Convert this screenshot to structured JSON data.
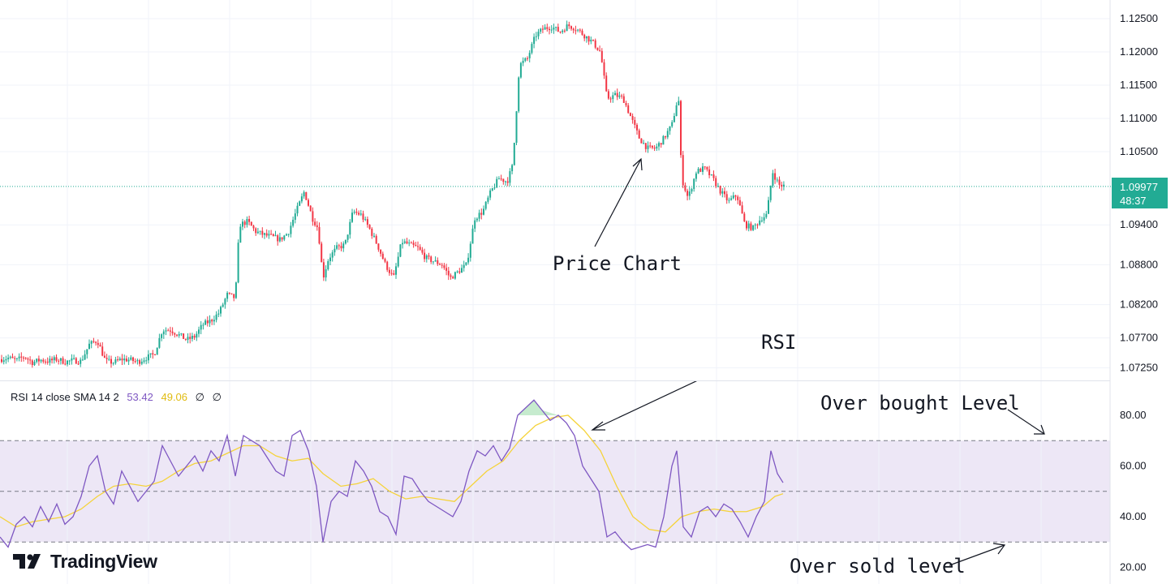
{
  "chart_data": [
    {
      "type": "candlestick",
      "title": "",
      "price_axis": {
        "ticks": [
          "1.12500",
          "1.12000",
          "1.11500",
          "1.11000",
          "1.10500",
          "1.09400",
          "1.08800",
          "1.08200",
          "1.07700",
          "1.07250"
        ],
        "current_price": "1.09977",
        "countdown": "48:37"
      },
      "path": [
        [
          0,
          1.0738
        ],
        [
          10,
          1.074
        ],
        [
          20,
          1.0736
        ],
        [
          30,
          1.0742
        ],
        [
          40,
          1.0733
        ],
        [
          50,
          1.0737
        ],
        [
          60,
          1.0735
        ],
        [
          70,
          1.0738
        ],
        [
          80,
          1.0734
        ],
        [
          90,
          1.0736
        ],
        [
          100,
          1.0735
        ],
        [
          110,
          1.076
        ],
        [
          120,
          1.0766
        ],
        [
          130,
          1.0735
        ],
        [
          140,
          1.0733
        ],
        [
          150,
          1.0738
        ],
        [
          160,
          1.0737
        ],
        [
          170,
          1.0734
        ],
        [
          180,
          1.074
        ],
        [
          190,
          1.0745
        ],
        [
          200,
          1.0782
        ],
        [
          210,
          1.0782
        ],
        [
          220,
          1.0775
        ],
        [
          230,
          1.0767
        ],
        [
          240,
          1.0772
        ],
        [
          250,
          1.079
        ],
        [
          260,
          1.0796
        ],
        [
          270,
          1.0808
        ],
        [
          280,
          1.0835
        ],
        [
          290,
          1.083
        ],
        [
          295,
          1.094
        ],
        [
          305,
          1.0945
        ],
        [
          315,
          1.093
        ],
        [
          325,
          1.0925
        ],
        [
          335,
          1.0922
        ],
        [
          345,
          1.0918
        ],
        [
          355,
          1.0928
        ],
        [
          365,
          1.096
        ],
        [
          375,
          1.099
        ],
        [
          385,
          1.095
        ],
        [
          392,
          1.0935
        ],
        [
          398,
          1.086
        ],
        [
          405,
          1.089
        ],
        [
          415,
          1.0905
        ],
        [
          425,
          1.091
        ],
        [
          435,
          1.096
        ],
        [
          445,
          1.0955
        ],
        [
          455,
          1.0935
        ],
        [
          465,
          1.091
        ],
        [
          475,
          1.088
        ],
        [
          485,
          1.086
        ],
        [
          495,
          1.0915
        ],
        [
          505,
          1.091
        ],
        [
          515,
          1.0905
        ],
        [
          525,
          1.089
        ],
        [
          535,
          1.0885
        ],
        [
          545,
          1.088
        ],
        [
          555,
          1.086
        ],
        [
          565,
          1.087
        ],
        [
          575,
          1.088
        ],
        [
          585,
          1.095
        ],
        [
          595,
          1.096
        ],
        [
          605,
          1.099
        ],
        [
          615,
          1.101
        ],
        [
          625,
          1.1005
        ],
        [
          632,
          1.103
        ],
        [
          640,
          1.118
        ],
        [
          650,
          1.119
        ],
        [
          660,
          1.1225
        ],
        [
          670,
          1.1235
        ],
        [
          680,
          1.1238
        ],
        [
          690,
          1.123
        ],
        [
          700,
          1.124
        ],
        [
          710,
          1.1235
        ],
        [
          720,
          1.1225
        ],
        [
          730,
          1.1215
        ],
        [
          740,
          1.12
        ],
        [
          748,
          1.113
        ],
        [
          758,
          1.1135
        ],
        [
          768,
          1.113
        ],
        [
          778,
          1.11
        ],
        [
          788,
          1.107
        ],
        [
          798,
          1.1055
        ],
        [
          808,
          1.1055
        ],
        [
          818,
          1.107
        ],
        [
          828,
          1.109
        ],
        [
          836,
          1.1135
        ],
        [
          840,
          1.101
        ],
        [
          848,
          1.098
        ],
        [
          858,
          1.102
        ],
        [
          868,
          1.1025
        ],
        [
          878,
          1.101
        ],
        [
          888,
          1.099
        ],
        [
          898,
          1.0975
        ],
        [
          908,
          1.0985
        ],
        [
          918,
          1.094
        ],
        [
          928,
          1.0935
        ],
        [
          938,
          1.095
        ],
        [
          945,
          1.0955
        ],
        [
          952,
          1.102
        ],
        [
          960,
          1.1
        ],
        [
          968,
          1.0998
        ]
      ],
      "visible_min": 1.0722,
      "visible_max": 1.1275
    },
    {
      "type": "line",
      "title": "RSI 14 close SMA 14 2",
      "ylim": [
        20,
        84
      ],
      "y_ticks": [
        "80.00",
        "60.00",
        "40.00",
        "20.00"
      ],
      "levels": {
        "overbought": 70,
        "middle": 50,
        "oversold": 30
      },
      "series": [
        {
          "name": "RSI",
          "value_label": "53.42",
          "color": "#7e57c2",
          "points": [
            [
              0,
              32
            ],
            [
              10,
              28
            ],
            [
              20,
              37
            ],
            [
              30,
              40
            ],
            [
              40,
              36
            ],
            [
              50,
              44
            ],
            [
              60,
              38
            ],
            [
              70,
              45
            ],
            [
              80,
              37
            ],
            [
              90,
              40
            ],
            [
              100,
              48
            ],
            [
              110,
              60
            ],
            [
              120,
              64
            ],
            [
              130,
              50
            ],
            [
              140,
              45
            ],
            [
              150,
              58
            ],
            [
              160,
              52
            ],
            [
              170,
              46
            ],
            [
              180,
              50
            ],
            [
              190,
              54
            ],
            [
              200,
              68
            ],
            [
              210,
              62
            ],
            [
              220,
              56
            ],
            [
              230,
              60
            ],
            [
              240,
              64
            ],
            [
              250,
              58
            ],
            [
              260,
              66
            ],
            [
              270,
              62
            ],
            [
              280,
              72
            ],
            [
              290,
              56
            ],
            [
              300,
              72
            ],
            [
              310,
              70
            ],
            [
              320,
              68
            ],
            [
              330,
              63
            ],
            [
              340,
              58
            ],
            [
              350,
              56
            ],
            [
              360,
              72
            ],
            [
              370,
              74
            ],
            [
              380,
              66
            ],
            [
              390,
              52
            ],
            [
              398,
              30
            ],
            [
              408,
              46
            ],
            [
              418,
              50
            ],
            [
              428,
              48
            ],
            [
              438,
              62
            ],
            [
              448,
              58
            ],
            [
              458,
              52
            ],
            [
              468,
              42
            ],
            [
              478,
              40
            ],
            [
              488,
              33
            ],
            [
              498,
              56
            ],
            [
              508,
              55
            ],
            [
              518,
              50
            ],
            [
              528,
              46
            ],
            [
              538,
              44
            ],
            [
              548,
              42
            ],
            [
              558,
              40
            ],
            [
              568,
              46
            ],
            [
              578,
              58
            ],
            [
              588,
              66
            ],
            [
              598,
              64
            ],
            [
              608,
              68
            ],
            [
              618,
              62
            ],
            [
              628,
              67
            ],
            [
              638,
              80
            ],
            [
              648,
              83
            ],
            [
              658,
              86
            ],
            [
              668,
              82
            ],
            [
              678,
              78
            ],
            [
              688,
              80
            ],
            [
              698,
              77
            ],
            [
              708,
              72
            ],
            [
              718,
              60
            ],
            [
              728,
              55
            ],
            [
              738,
              50
            ],
            [
              748,
              32
            ],
            [
              758,
              34
            ],
            [
              768,
              30
            ],
            [
              778,
              27
            ],
            [
              788,
              28
            ],
            [
              798,
              29
            ],
            [
              808,
              28
            ],
            [
              818,
              40
            ],
            [
              828,
              60
            ],
            [
              834,
              66
            ],
            [
              842,
              36
            ],
            [
              852,
              32
            ],
            [
              862,
              42
            ],
            [
              872,
              44
            ],
            [
              882,
              40
            ],
            [
              892,
              45
            ],
            [
              902,
              43
            ],
            [
              912,
              38
            ],
            [
              922,
              32
            ],
            [
              932,
              40
            ],
            [
              942,
              46
            ],
            [
              950,
              66
            ],
            [
              958,
              57
            ],
            [
              965,
              53.42
            ]
          ]
        },
        {
          "name": "SMA",
          "value_label": "49.06",
          "color": "#f5d33a",
          "points": [
            [
              0,
              40
            ],
            [
              20,
              36
            ],
            [
              40,
              38
            ],
            [
              60,
              39
            ],
            [
              80,
              40
            ],
            [
              100,
              43
            ],
            [
              120,
              48
            ],
            [
              140,
              52
            ],
            [
              160,
              53
            ],
            [
              180,
              52
            ],
            [
              200,
              54
            ],
            [
              220,
              58
            ],
            [
              240,
              61
            ],
            [
              260,
              62
            ],
            [
              280,
              65
            ],
            [
              300,
              68
            ],
            [
              320,
              68
            ],
            [
              340,
              64
            ],
            [
              360,
              62
            ],
            [
              380,
              63
            ],
            [
              398,
              57
            ],
            [
              420,
              52
            ],
            [
              440,
              53
            ],
            [
              460,
              55
            ],
            [
              480,
              50
            ],
            [
              500,
              47
            ],
            [
              520,
              48
            ],
            [
              540,
              47
            ],
            [
              560,
              46
            ],
            [
              580,
              52
            ],
            [
              600,
              58
            ],
            [
              620,
              62
            ],
            [
              640,
              70
            ],
            [
              660,
              76
            ],
            [
              680,
              79
            ],
            [
              700,
              80
            ],
            [
              720,
              74
            ],
            [
              740,
              66
            ],
            [
              760,
              52
            ],
            [
              780,
              40
            ],
            [
              800,
              35
            ],
            [
              820,
              34
            ],
            [
              840,
              40
            ],
            [
              860,
              42
            ],
            [
              880,
              43
            ],
            [
              900,
              42
            ],
            [
              920,
              42
            ],
            [
              940,
              44
            ],
            [
              955,
              48
            ],
            [
              965,
              49.06
            ]
          ]
        }
      ],
      "extra_values": [
        "∅",
        "∅"
      ]
    }
  ],
  "annotations": {
    "price_chart": "Price Chart",
    "rsi": "RSI",
    "overbought": "Over bought Level",
    "oversold": "Over sold level"
  },
  "branding": {
    "logo_text": "TradingView"
  },
  "colors": {
    "up": "#22ab94",
    "down": "#f23645",
    "rsi": "#7e57c2",
    "sma": "#f5d33a",
    "rsi_band": "#ede7f6",
    "accent": "#22ab94"
  }
}
